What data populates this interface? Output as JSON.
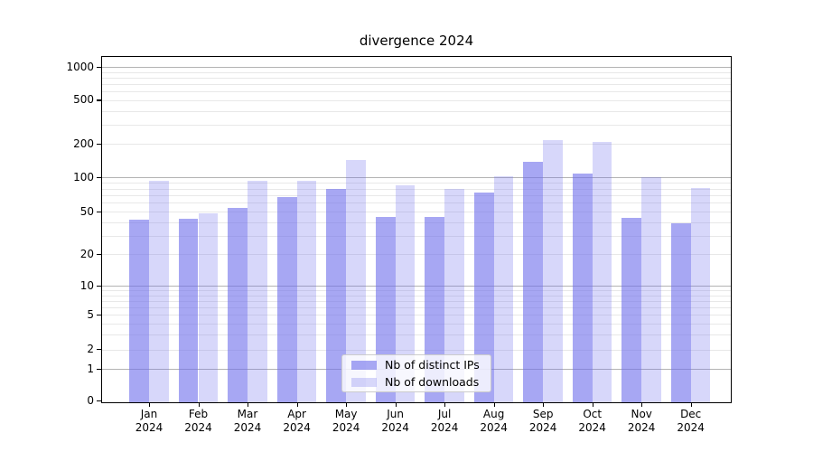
{
  "title": "divergence 2024",
  "chart_data": {
    "type": "bar",
    "title": "divergence 2024",
    "categories": [
      "Jan",
      "Feb",
      "Mar",
      "Apr",
      "May",
      "Jun",
      "Jul",
      "Aug",
      "Sep",
      "Oct",
      "Nov",
      "Dec"
    ],
    "xtick_year": "2024",
    "series": [
      {
        "name": "Nb of distinct IPs",
        "color": "rgba(108,108,235,0.60)",
        "solid_color": "#a7a7f3",
        "values": [
          42,
          43,
          54,
          67,
          80,
          45,
          45,
          74,
          139,
          108,
          44,
          39
        ]
      },
      {
        "name": "Nb of downloads",
        "color": "rgba(108,108,235,0.27)",
        "solid_color": "#d9d9f9",
        "values": [
          93,
          48,
          93,
          93,
          143,
          85,
          79,
          103,
          218,
          207,
          101,
          81
        ]
      }
    ],
    "yscale": "asinh",
    "yticks": [
      0,
      1,
      2,
      5,
      10,
      20,
      50,
      100,
      200,
      500,
      1000
    ],
    "ylim": [
      0,
      1300
    ],
    "grid": {
      "orientation": "horizontal",
      "major_values": [
        1,
        10,
        100,
        1000
      ],
      "minor_values": [
        3,
        4,
        6,
        7,
        8,
        9,
        30,
        40,
        60,
        70,
        80,
        90,
        300,
        400,
        600,
        700,
        800,
        900
      ],
      "major_color": "#b3b3b3",
      "minor_color": "#e8e8e8"
    },
    "legend": {
      "position": "lower-center-inside",
      "border_color": "#cccccc",
      "background": "rgba(255,255,255,0.8)"
    },
    "axis_color": "#000000",
    "background_color": "#ffffff"
  }
}
